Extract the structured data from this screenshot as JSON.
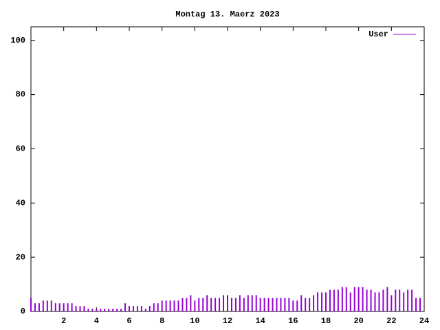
{
  "chart_data": {
    "type": "impulse",
    "title": "Montag 13. Maerz 2023",
    "series": [
      {
        "name": "User",
        "color": "#9400d3",
        "x": [
          0,
          0.25,
          0.5,
          0.75,
          1,
          1.25,
          1.5,
          1.75,
          2,
          2.25,
          2.5,
          2.75,
          3,
          3.25,
          3.5,
          3.75,
          4,
          4.25,
          4.5,
          4.75,
          5,
          5.25,
          5.5,
          5.75,
          6,
          6.25,
          6.5,
          6.75,
          7,
          7.25,
          7.5,
          7.75,
          8,
          8.25,
          8.5,
          8.75,
          9,
          9.25,
          9.5,
          9.75,
          10,
          10.25,
          10.5,
          10.75,
          11,
          11.25,
          11.5,
          11.75,
          12,
          12.25,
          12.5,
          12.75,
          13,
          13.25,
          13.5,
          13.75,
          14,
          14.25,
          14.5,
          14.75,
          15,
          15.25,
          15.5,
          15.75,
          16,
          16.25,
          16.5,
          16.75,
          17,
          17.25,
          17.5,
          17.75,
          18,
          18.25,
          18.5,
          18.75,
          19,
          19.25,
          19.5,
          19.75,
          20,
          20.25,
          20.5,
          20.75,
          21,
          21.25,
          21.5,
          21.75,
          22,
          22.25,
          22.5,
          22.75,
          23,
          23.25,
          23.5,
          23.75
        ],
        "values": [
          5,
          3,
          3,
          4,
          4,
          4,
          3,
          3,
          3,
          3,
          3,
          2,
          2,
          2,
          1,
          1,
          1,
          1,
          1,
          1,
          1,
          1,
          1,
          3,
          2,
          2,
          2,
          2,
          1,
          2,
          3,
          3,
          4,
          4,
          4,
          4,
          4,
          5,
          5,
          6,
          4,
          5,
          5,
          6,
          5,
          5,
          5,
          6,
          6,
          5,
          5,
          6,
          5,
          6,
          6,
          6,
          5,
          5,
          5,
          5,
          5,
          5,
          5,
          5,
          4,
          4,
          6,
          5,
          5,
          6,
          7,
          7,
          7,
          8,
          8,
          8,
          9,
          9,
          7,
          9,
          9,
          9,
          8,
          8,
          7,
          7,
          8,
          9,
          6,
          8,
          8,
          7,
          8,
          8,
          5,
          5
        ]
      }
    ],
    "xlim": [
      0,
      24
    ],
    "xticks": [
      2,
      4,
      6,
      8,
      10,
      12,
      14,
      16,
      18,
      20,
      22,
      24
    ],
    "ylim": [
      0,
      105
    ],
    "yticks": [
      0,
      20,
      40,
      60,
      80,
      100
    ],
    "legend": "top-right"
  }
}
